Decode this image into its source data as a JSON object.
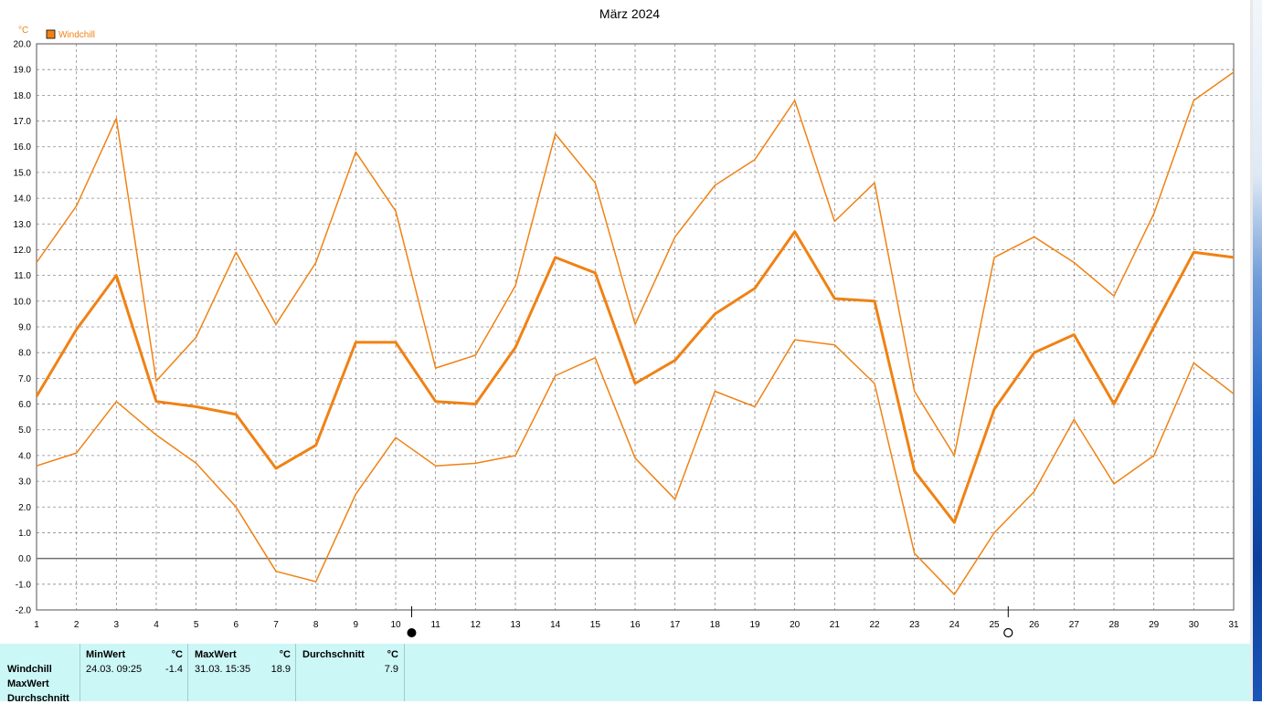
{
  "chart_data": {
    "type": "line",
    "title": "März 2024",
    "yunit": "°C",
    "legend": "Windchill",
    "legend_placement": "top-left",
    "grid": true,
    "ylim": [
      -2.0,
      20.0
    ],
    "ytick_step": 1.0,
    "xlim": [
      1,
      31
    ],
    "x": [
      1,
      2,
      3,
      4,
      5,
      6,
      7,
      8,
      9,
      10,
      11,
      12,
      13,
      14,
      15,
      16,
      17,
      18,
      19,
      20,
      21,
      22,
      23,
      24,
      25,
      26,
      27,
      28,
      29,
      30,
      31
    ],
    "series": [
      {
        "values": [
          11.5,
          13.7,
          17.1,
          6.9,
          8.6,
          11.9,
          9.1,
          11.5,
          15.8,
          13.5,
          7.4,
          7.9,
          10.6,
          16.5,
          14.6,
          9.1,
          12.5,
          14.5,
          15.5,
          17.8,
          13.1,
          14.6,
          6.5,
          4.0,
          11.7,
          12.5,
          11.5,
          10.2,
          13.4,
          17.8,
          18.9
        ]
      },
      {
        "values": [
          6.3,
          8.9,
          11.0,
          6.1,
          5.9,
          5.6,
          3.5,
          4.4,
          8.4,
          8.4,
          6.1,
          6.0,
          8.2,
          11.7,
          11.1,
          6.8,
          7.7,
          9.5,
          10.5,
          12.7,
          10.1,
          10.0,
          3.4,
          1.4,
          5.8,
          8.0,
          8.7,
          6.0,
          9.0,
          11.9,
          11.7
        ]
      },
      {
        "values": [
          3.6,
          4.1,
          6.1,
          4.8,
          3.7,
          2.0,
          -0.5,
          -0.9,
          2.5,
          4.7,
          3.6,
          3.7,
          4.0,
          7.1,
          7.8,
          3.9,
          2.3,
          6.5,
          5.9,
          8.5,
          8.3,
          6.8,
          0.2,
          -1.4,
          1.0,
          2.6,
          5.4,
          2.9,
          4.0,
          7.6,
          6.4
        ]
      }
    ],
    "markers": [
      {
        "x": 10.4,
        "symbol": "filled-circle"
      },
      {
        "x": 25.35,
        "symbol": "open-circle"
      }
    ],
    "line_color": "#f08214"
  },
  "stats": {
    "row_labels": [
      "Windchill",
      "MaxWert",
      "Durchschnitt"
    ],
    "min": {
      "header": "MinWert",
      "unit": "°C",
      "date": "24.03.  09:25",
      "value": "-1.4"
    },
    "max": {
      "header": "MaxWert",
      "unit": "°C",
      "date": "31.03.  15:35",
      "value": "18.9"
    },
    "avg": {
      "header": "Durchschnitt",
      "unit": "°C",
      "value": "7.9"
    }
  },
  "colors": {
    "series": "#f08214",
    "panel_bg": "#ccf7f7"
  }
}
